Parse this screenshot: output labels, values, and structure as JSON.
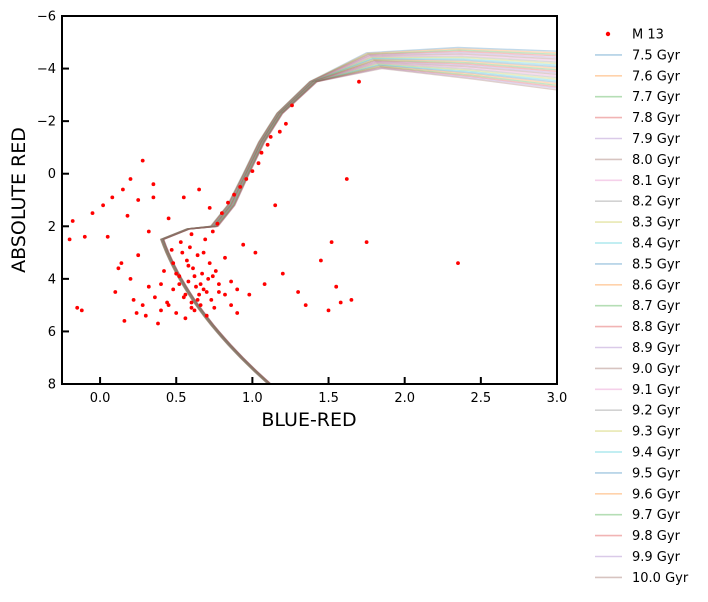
{
  "chart_data": {
    "type": "scatter",
    "xlabel": "BLUE-RED",
    "ylabel": "ABSOLUTE RED",
    "xlim": [
      -0.25,
      3.0
    ],
    "ylim": [
      8,
      -6
    ],
    "y_inverted": true,
    "x_ticks": [
      "0.0",
      "0.5",
      "1.0",
      "1.5",
      "2.0",
      "2.5",
      "3.0"
    ],
    "y_ticks": [
      "−6",
      "−4",
      "−2",
      "0",
      "2",
      "4",
      "6",
      "8"
    ],
    "grid": false,
    "legend_position": "outside-right",
    "scatter_series": {
      "name": "M 13",
      "color": "#ff0000",
      "points": [
        [
          -0.18,
          1.8
        ],
        [
          -0.1,
          2.4
        ],
        [
          -0.15,
          5.1
        ],
        [
          -0.12,
          5.2
        ],
        [
          -0.2,
          2.5
        ],
        [
          -0.05,
          1.5
        ],
        [
          0.02,
          1.2
        ],
        [
          0.05,
          2.4
        ],
        [
          0.08,
          0.9
        ],
        [
          0.1,
          4.5
        ],
        [
          0.12,
          3.6
        ],
        [
          0.15,
          0.6
        ],
        [
          0.18,
          1.6
        ],
        [
          0.2,
          0.2
        ],
        [
          0.22,
          4.8
        ],
        [
          0.25,
          3.1
        ],
        [
          0.28,
          -0.5
        ],
        [
          0.3,
          5.4
        ],
        [
          0.32,
          2.2
        ],
        [
          0.35,
          0.4
        ],
        [
          0.38,
          5.7
        ],
        [
          0.4,
          4.2
        ],
        [
          0.42,
          3.7
        ],
        [
          0.45,
          5.0
        ],
        [
          0.47,
          2.9
        ],
        [
          0.48,
          4.4
        ],
        [
          0.5,
          5.3
        ],
        [
          0.52,
          3.9
        ],
        [
          0.53,
          2.6
        ],
        [
          0.55,
          4.7
        ],
        [
          0.56,
          5.5
        ],
        [
          0.57,
          3.3
        ],
        [
          0.58,
          4.1
        ],
        [
          0.59,
          2.8
        ],
        [
          0.6,
          4.9
        ],
        [
          0.61,
          3.6
        ],
        [
          0.62,
          5.2
        ],
        [
          0.63,
          4.3
        ],
        [
          0.64,
          3.1
        ],
        [
          0.65,
          4.6
        ],
        [
          0.66,
          5.0
        ],
        [
          0.67,
          3.8
        ],
        [
          0.68,
          4.4
        ],
        [
          0.69,
          2.5
        ],
        [
          0.7,
          5.4
        ],
        [
          0.71,
          4.0
        ],
        [
          0.72,
          3.4
        ],
        [
          0.73,
          4.8
        ],
        [
          0.74,
          2.2
        ],
        [
          0.75,
          5.1
        ],
        [
          0.76,
          3.7
        ],
        [
          0.77,
          1.9
        ],
        [
          0.78,
          4.5
        ],
        [
          0.8,
          1.5
        ],
        [
          0.82,
          3.2
        ],
        [
          0.84,
          1.1
        ],
        [
          0.86,
          4.1
        ],
        [
          0.88,
          0.8
        ],
        [
          0.9,
          5.3
        ],
        [
          0.92,
          0.5
        ],
        [
          0.94,
          2.7
        ],
        [
          0.96,
          0.2
        ],
        [
          0.98,
          4.6
        ],
        [
          1.0,
          -0.1
        ],
        [
          1.02,
          3.0
        ],
        [
          1.04,
          -0.4
        ],
        [
          1.06,
          -0.8
        ],
        [
          1.08,
          4.2
        ],
        [
          1.1,
          -1.1
        ],
        [
          1.12,
          -1.4
        ],
        [
          1.15,
          1.2
        ],
        [
          1.18,
          -1.6
        ],
        [
          1.2,
          3.8
        ],
        [
          1.22,
          -1.9
        ],
        [
          1.26,
          -2.6
        ],
        [
          1.3,
          4.5
        ],
        [
          1.35,
          5.0
        ],
        [
          1.45,
          3.3
        ],
        [
          1.5,
          5.2
        ],
        [
          1.52,
          2.6
        ],
        [
          1.55,
          4.3
        ],
        [
          1.58,
          4.9
        ],
        [
          1.62,
          0.2
        ],
        [
          1.65,
          4.8
        ],
        [
          1.75,
          2.6
        ],
        [
          1.7,
          -3.5
        ],
        [
          2.35,
          3.4
        ],
        [
          0.55,
          0.9
        ],
        [
          0.65,
          0.6
        ],
        [
          0.72,
          1.3
        ],
        [
          0.45,
          1.7
        ],
        [
          0.35,
          0.9
        ],
        [
          0.25,
          1.0
        ],
        [
          0.6,
          2.3
        ],
        [
          0.68,
          3.0
        ],
        [
          0.58,
          3.5
        ],
        [
          0.62,
          3.9
        ],
        [
          0.66,
          4.2
        ],
        [
          0.7,
          4.5
        ],
        [
          0.64,
          4.8
        ],
        [
          0.6,
          5.1
        ],
        [
          0.56,
          4.6
        ],
        [
          0.52,
          4.2
        ],
        [
          0.5,
          3.8
        ],
        [
          0.48,
          3.4
        ],
        [
          0.54,
          3.0
        ],
        [
          0.74,
          3.9
        ],
        [
          0.78,
          4.2
        ],
        [
          0.82,
          4.6
        ],
        [
          0.86,
          5.0
        ],
        [
          0.9,
          4.4
        ],
        [
          0.44,
          4.9
        ],
        [
          0.4,
          5.2
        ],
        [
          0.36,
          4.7
        ],
        [
          0.32,
          4.3
        ],
        [
          0.28,
          5.0
        ],
        [
          0.24,
          5.3
        ],
        [
          0.2,
          4.0
        ],
        [
          0.16,
          5.6
        ],
        [
          0.14,
          3.4
        ]
      ]
    },
    "isochrones": [
      {
        "name": "7.5 Gyr",
        "color": "#1f77b4"
      },
      {
        "name": "7.6 Gyr",
        "color": "#ff7f0e"
      },
      {
        "name": "7.7 Gyr",
        "color": "#2ca02c"
      },
      {
        "name": "7.8 Gyr",
        "color": "#d62728"
      },
      {
        "name": "7.9 Gyr",
        "color": "#9467bd"
      },
      {
        "name": "8.0 Gyr",
        "color": "#8c564b"
      },
      {
        "name": "8.1 Gyr",
        "color": "#e377c2"
      },
      {
        "name": "8.2 Gyr",
        "color": "#7f7f7f"
      },
      {
        "name": "8.3 Gyr",
        "color": "#bcbd22"
      },
      {
        "name": "8.4 Gyr",
        "color": "#17becf"
      },
      {
        "name": "8.5 Gyr",
        "color": "#1f77b4"
      },
      {
        "name": "8.6 Gyr",
        "color": "#ff7f0e"
      },
      {
        "name": "8.7 Gyr",
        "color": "#2ca02c"
      },
      {
        "name": "8.8 Gyr",
        "color": "#d62728"
      },
      {
        "name": "8.9 Gyr",
        "color": "#9467bd"
      },
      {
        "name": "9.0 Gyr",
        "color": "#8c564b"
      },
      {
        "name": "9.1 Gyr",
        "color": "#e377c2"
      },
      {
        "name": "9.2 Gyr",
        "color": "#7f7f7f"
      },
      {
        "name": "9.3 Gyr",
        "color": "#bcbd22"
      },
      {
        "name": "9.4 Gyr",
        "color": "#17becf"
      },
      {
        "name": "9.5 Gyr",
        "color": "#1f77b4"
      },
      {
        "name": "9.6 Gyr",
        "color": "#ff7f0e"
      },
      {
        "name": "9.7 Gyr",
        "color": "#2ca02c"
      },
      {
        "name": "9.8 Gyr",
        "color": "#d62728"
      },
      {
        "name": "9.9 Gyr",
        "color": "#9467bd"
      },
      {
        "name": "10.0 Gyr",
        "color": "#8c564b"
      }
    ]
  }
}
